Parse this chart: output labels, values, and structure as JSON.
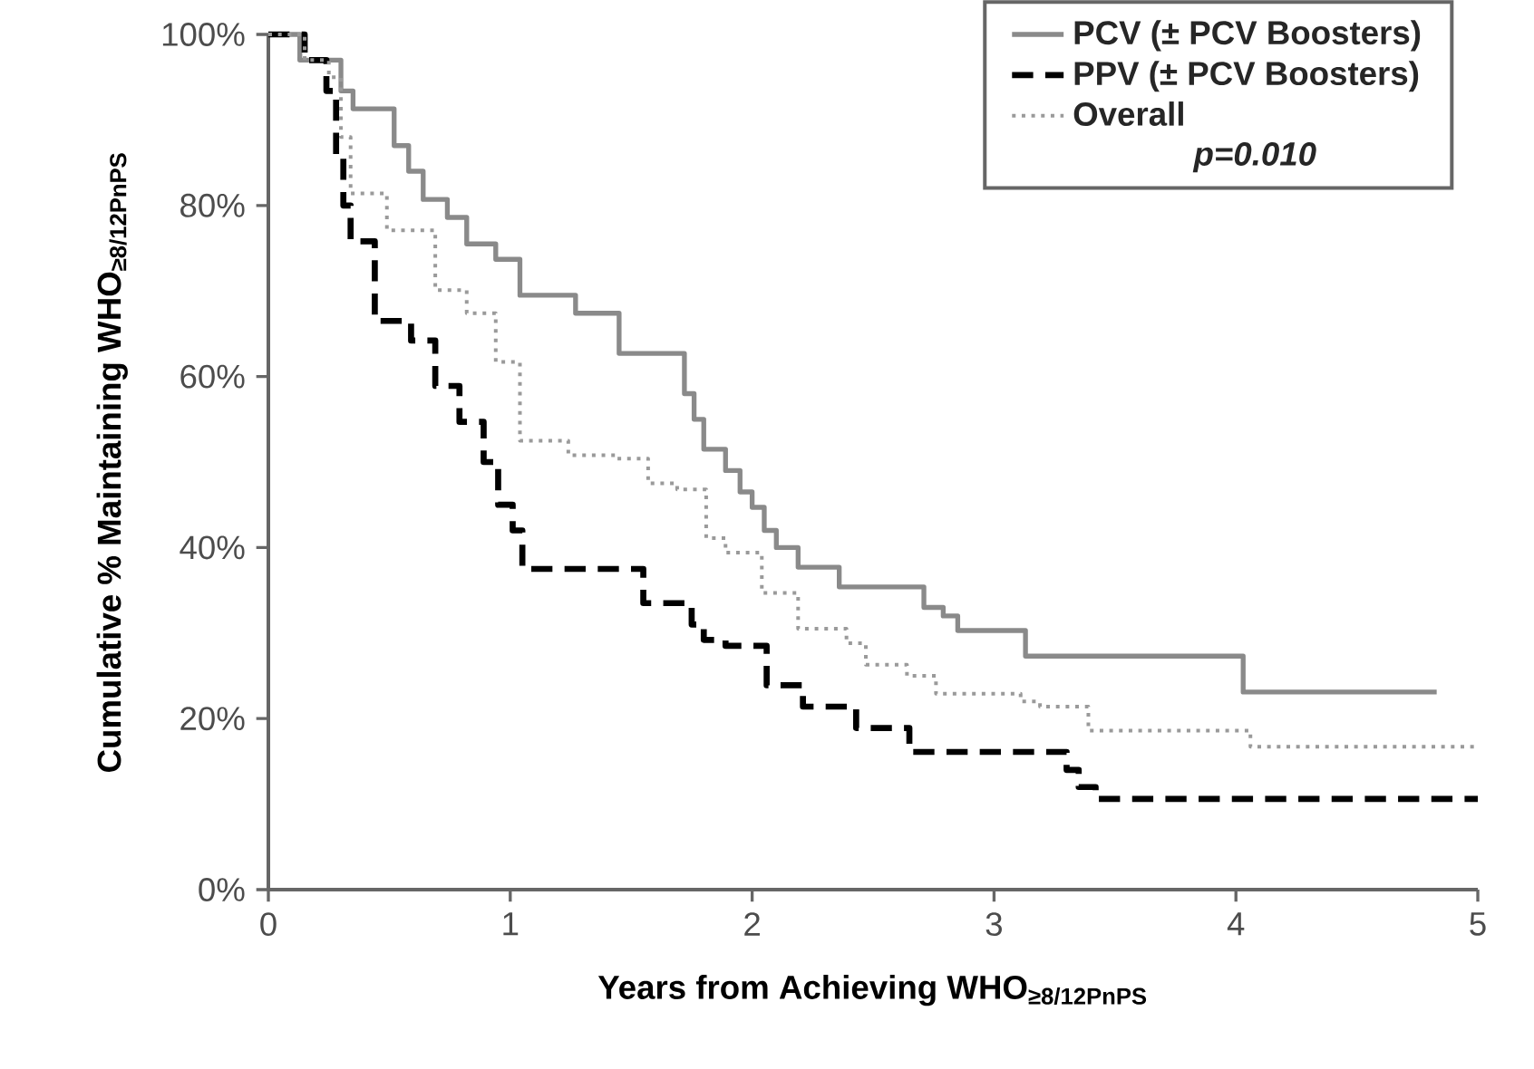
{
  "chart_data": {
    "type": "step",
    "xlabel": "Years from Achieving WHO$_{≥8/12PnPS}$",
    "ylabel": "Cumulative % Maintaining WHO$_{≥8/12PnPS}$",
    "xlim": [
      0,
      5
    ],
    "ylim": [
      0,
      100
    ],
    "xticks": [
      0,
      1,
      2,
      3,
      4,
      5
    ],
    "yticks": [
      {
        "value": 0,
        "label": "0%"
      },
      {
        "value": 20,
        "label": "20%"
      },
      {
        "value": 40,
        "label": "40%"
      },
      {
        "value": 60,
        "label": "60%"
      },
      {
        "value": 80,
        "label": "80%"
      },
      {
        "value": 100,
        "label": "100%"
      }
    ],
    "grid": false,
    "legend": "top right",
    "annotations": [
      "p=0.010"
    ],
    "series": [
      {
        "name": "PCV (± PCV Boosters)",
        "color": "#8a8a8a",
        "line_style": "solid",
        "x": [
          0,
          0.13,
          0.3,
          0.35,
          0.52,
          0.58,
          0.64,
          0.74,
          0.82,
          0.94,
          1.04,
          1.27,
          1.45,
          1.72,
          1.76,
          1.8,
          1.89,
          1.95,
          2.0,
          2.05,
          2.1,
          2.19,
          2.36,
          2.71,
          2.79,
          2.85,
          3.13,
          4.03,
          4.83
        ],
        "values": [
          100,
          97,
          93.4,
          91.3,
          87,
          84,
          80.7,
          78.6,
          75.5,
          73.7,
          69.5,
          67.4,
          62.7,
          58,
          55,
          51.5,
          49,
          46.5,
          44.7,
          42,
          40,
          37.7,
          35.4,
          33,
          32,
          30.3,
          27.3,
          23.1,
          23.1
        ]
      },
      {
        "name": "PPV (± PCV Boosters)",
        "color": "#000000",
        "line_style": "dashed",
        "x": [
          0,
          0.15,
          0.24,
          0.28,
          0.31,
          0.34,
          0.44,
          0.59,
          0.69,
          0.79,
          0.89,
          0.95,
          1.01,
          1.05,
          1.55,
          1.75,
          1.8,
          1.89,
          2.06,
          2.21,
          2.43,
          2.65,
          3.3,
          3.35,
          3.42,
          5.0
        ],
        "values": [
          100,
          97,
          93.4,
          86,
          80,
          75.8,
          66.5,
          64.2,
          58.9,
          54.7,
          50,
          45,
          42,
          37.5,
          33.5,
          31,
          29.2,
          28.5,
          23.9,
          21.4,
          18.9,
          16.1,
          14,
          12,
          10.6,
          10.6
        ]
      },
      {
        "name": "Overall",
        "color": "#9a9a9a",
        "line_style": "dotted",
        "x": [
          0,
          0.15,
          0.25,
          0.3,
          0.34,
          0.49,
          0.69,
          0.82,
          0.94,
          1.04,
          1.24,
          1.44,
          1.57,
          1.69,
          1.81,
          1.89,
          2.04,
          2.19,
          2.39,
          2.47,
          2.64,
          2.76,
          3.11,
          3.19,
          3.39,
          3.99,
          4.06,
          5.0
        ],
        "values": [
          100,
          97,
          95,
          88,
          81.4,
          77.1,
          70.1,
          67.4,
          61.7,
          52.5,
          50.8,
          50.4,
          47.5,
          46.8,
          41.1,
          39.4,
          34.7,
          30.5,
          28.8,
          26.3,
          25,
          22.9,
          22,
          21.4,
          18.6,
          18.6,
          16.7,
          16.7
        ]
      }
    ]
  }
}
